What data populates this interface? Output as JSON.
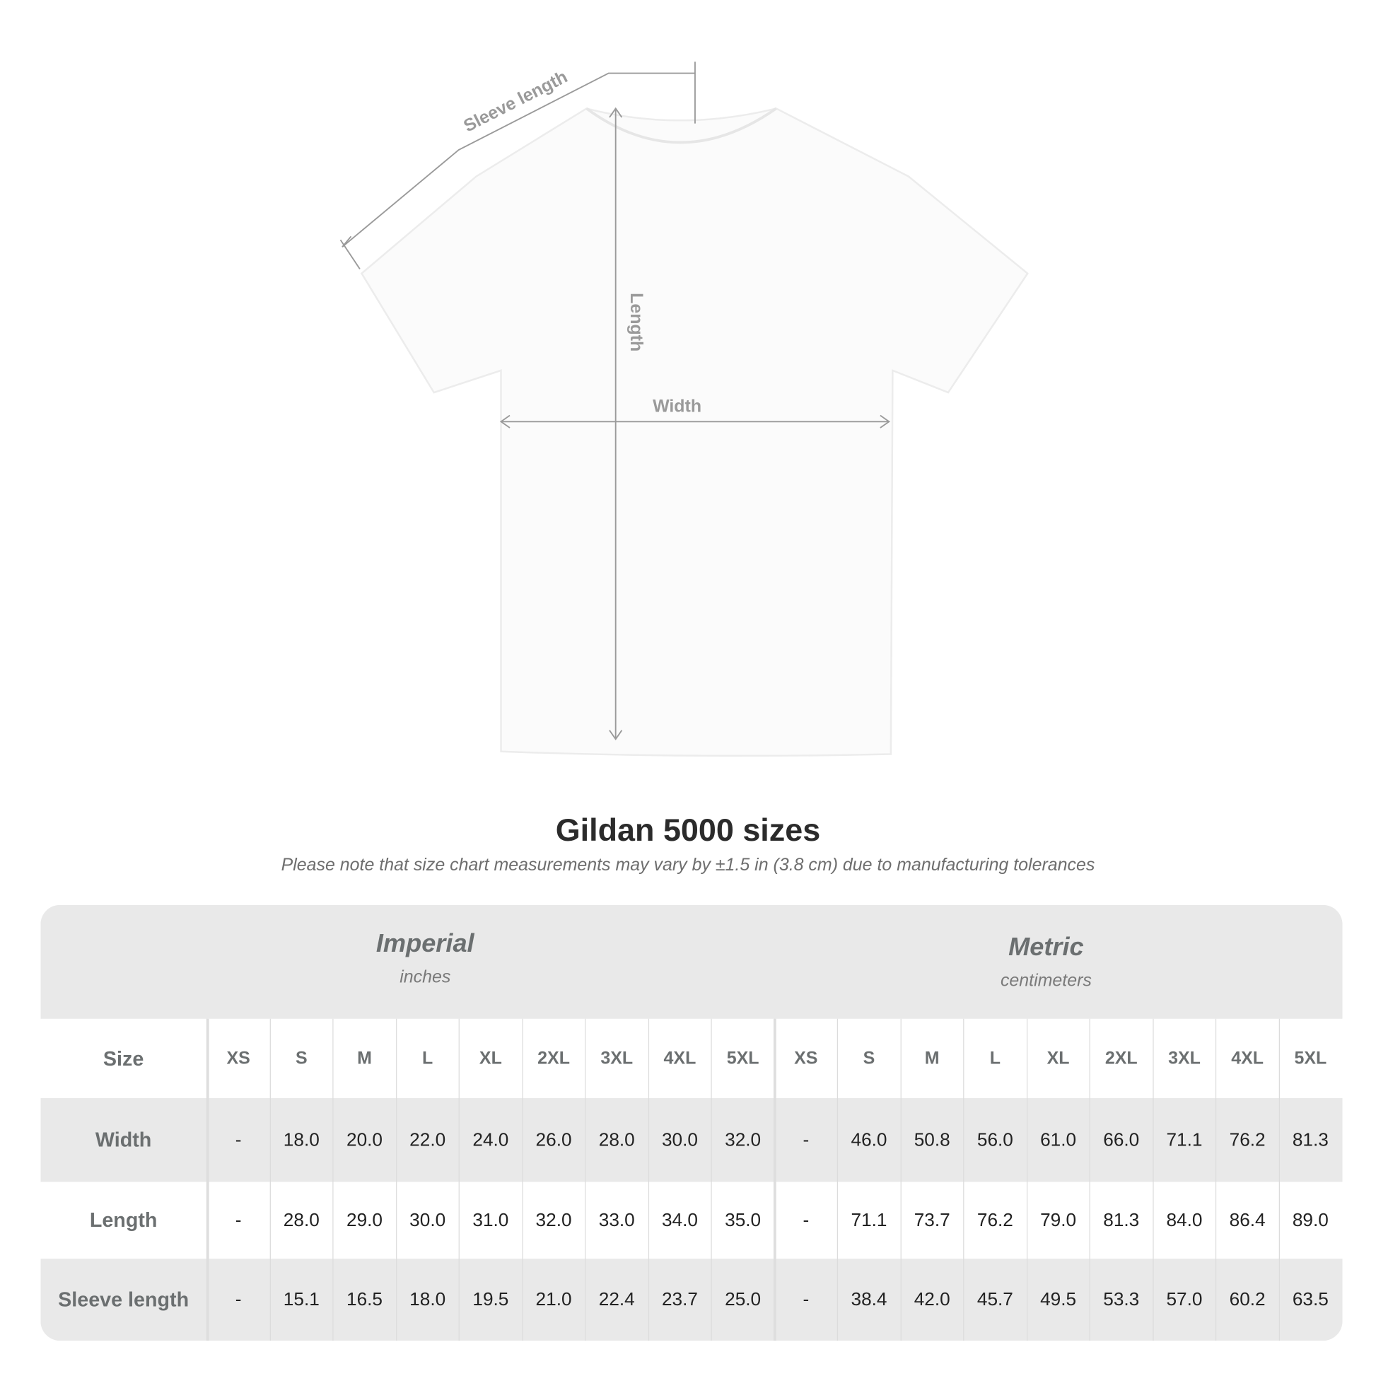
{
  "diagram": {
    "labels": {
      "sleeve": "Sleeve length",
      "length": "Length",
      "width": "Width"
    }
  },
  "title": "Gildan 5000 sizes",
  "note": "Please note that size chart measurements may vary by ±1.5 in (3.8 cm) due to manufacturing tolerances",
  "table": {
    "imperial": {
      "title": "Imperial",
      "unit": "inches"
    },
    "metric": {
      "title": "Metric",
      "unit": "centimeters"
    },
    "size_label": "Size",
    "sizes": [
      "XS",
      "S",
      "M",
      "L",
      "XL",
      "2XL",
      "3XL",
      "4XL",
      "5XL"
    ],
    "rows": [
      {
        "label": "Width",
        "imperial": [
          "-",
          "18.0",
          "20.0",
          "22.0",
          "24.0",
          "26.0",
          "28.0",
          "30.0",
          "32.0"
        ],
        "metric": [
          "-",
          "46.0",
          "50.8",
          "56.0",
          "61.0",
          "66.0",
          "71.1",
          "76.2",
          "81.3"
        ]
      },
      {
        "label": "Length",
        "imperial": [
          "-",
          "28.0",
          "29.0",
          "30.0",
          "31.0",
          "32.0",
          "33.0",
          "34.0",
          "35.0"
        ],
        "metric": [
          "-",
          "71.1",
          "73.7",
          "76.2",
          "79.0",
          "81.3",
          "84.0",
          "86.4",
          "89.0"
        ]
      },
      {
        "label": "Sleeve length",
        "imperial": [
          "-",
          "15.1",
          "16.5",
          "18.0",
          "19.5",
          "21.0",
          "22.4",
          "23.7",
          "25.0"
        ],
        "metric": [
          "-",
          "38.4",
          "42.0",
          "45.7",
          "49.5",
          "53.3",
          "57.0",
          "60.2",
          "63.5"
        ]
      }
    ]
  },
  "colors": {
    "band": "#e9e9e9",
    "label": "#6b6f70",
    "dimension_lines": "#9a9a9a"
  }
}
